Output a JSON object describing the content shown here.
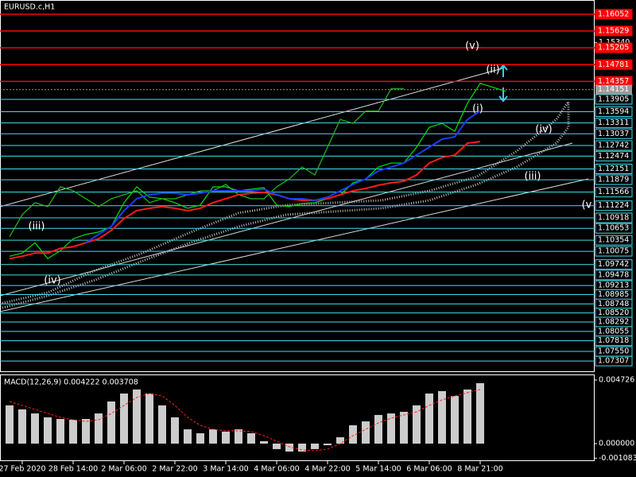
{
  "chart_data": {
    "type": "price",
    "title": "EURUSD.c,H1",
    "categories": [
      null,
      "27 Feb 2020",
      null,
      null,
      null,
      "28 Feb 14:00",
      null,
      null,
      null,
      "2 Mar 06:00",
      null,
      null,
      null,
      "2 Mar 22:00",
      null,
      null,
      null,
      "3 Mar 14:00",
      null,
      null,
      null,
      "4 Mar 06:00",
      null,
      null,
      null,
      "4 Mar 22:00",
      null,
      null,
      null,
      "5 Mar 14:00",
      null,
      null,
      null,
      "6 Mar 06:00",
      null,
      null,
      null,
      "8 Mar 21:00",
      null,
      null
    ],
    "ylim": [
      1.0703,
      1.1641
    ],
    "yticks": [
      {
        "value": 1.1534,
        "label": "1.15340"
      }
    ],
    "bid": 1.14151,
    "bid_color": "#9a9a9a",
    "series": [
      {
        "name": "close",
        "color": "#00e000",
        "values": [
          1.0995,
          1.1003,
          1.1029,
          1.0989,
          1.1009,
          1.1039,
          1.105,
          1.1056,
          1.107,
          1.113,
          1.117,
          1.1144,
          1.114,
          1.113,
          1.1116,
          1.1124,
          1.117,
          1.117,
          1.116,
          1.1164,
          1.1168,
          1.1124,
          1.112,
          1.1128,
          1.113,
          1.114,
          1.115,
          1.118,
          1.119,
          1.122,
          1.123,
          1.123,
          1.127,
          1.132,
          1.133,
          1.131,
          1.1381,
          1.1431,
          1.1421,
          1.1411
        ]
      },
      {
        "name": "lagging",
        "color": "#22bb22",
        "values": [
          1.1044,
          1.11,
          1.113,
          1.112,
          1.117,
          1.116,
          1.114,
          1.112,
          1.114,
          1.115,
          1.116,
          1.113,
          1.114,
          1.114,
          1.115,
          1.116,
          1.116,
          1.1176,
          1.115,
          1.114,
          1.114,
          1.117,
          1.119,
          1.122,
          1.12,
          1.127,
          1.134,
          1.133,
          1.1361,
          1.1361,
          1.1417,
          1.1417,
          null,
          null,
          null,
          null,
          null,
          null,
          null,
          null
        ]
      },
      {
        "name": "ma-red",
        "color": "#ff1a1a",
        "values": [
          1.0989,
          1.0995,
          1.1003,
          1.1003,
          1.1015,
          1.1019,
          1.1029,
          1.1039,
          1.106,
          1.109,
          1.111,
          1.1116,
          1.112,
          1.1116,
          1.111,
          1.1116,
          1.113,
          1.114,
          1.115,
          1.1154,
          1.1156,
          1.115,
          1.114,
          1.1136,
          1.1136,
          1.114,
          1.115,
          1.116,
          1.1166,
          1.1174,
          1.118,
          1.1184,
          1.12,
          1.123,
          1.1244,
          1.125,
          1.128,
          1.1284,
          null,
          null
        ]
      },
      {
        "name": "ma-blue",
        "color": "#1a3cff",
        "values": [
          null,
          null,
          null,
          null,
          null,
          null,
          1.1029,
          1.105,
          1.107,
          1.111,
          1.114,
          1.115,
          1.1154,
          1.1154,
          1.115,
          1.1154,
          1.116,
          1.116,
          1.116,
          1.116,
          1.1164,
          1.115,
          1.114,
          1.114,
          1.1136,
          1.1144,
          1.116,
          1.1176,
          1.119,
          1.121,
          1.122,
          1.123,
          1.125,
          1.127,
          1.129,
          1.1296,
          1.134,
          1.1361,
          null,
          null
        ]
      }
    ],
    "levels": [
      {
        "value": 1.16052,
        "color": "#ff0000"
      },
      {
        "value": 1.15629,
        "color": "#ff0000"
      },
      {
        "value": 1.15205,
        "color": "#ff0000"
      },
      {
        "value": 1.14781,
        "color": "#ff0000"
      },
      {
        "value": 1.14357,
        "color": "#ff0000"
      },
      {
        "value": 1.13905,
        "color": "#40e0f0"
      },
      {
        "value": 1.13594,
        "color": "#40e0f0"
      },
      {
        "value": 1.13311,
        "color": "#40e0f0"
      },
      {
        "value": 1.13037,
        "color": "#40e0f0"
      },
      {
        "value": 1.12742,
        "color": "#40e0f0"
      },
      {
        "value": 1.12474,
        "color": "#40e0f0"
      },
      {
        "value": 1.12151,
        "color": "#40e0f0"
      },
      {
        "value": 1.11879,
        "color": "#40e0f0"
      },
      {
        "value": 1.11566,
        "color": "#40e0f0"
      },
      {
        "value": 1.11224,
        "color": "#40e0f0"
      },
      {
        "value": 1.10918,
        "color": "#40e0f0"
      },
      {
        "value": 1.10653,
        "color": "#40e0f0"
      },
      {
        "value": 1.10354,
        "color": "#40e0f0"
      },
      {
        "value": 1.10075,
        "color": "#40e0f0"
      },
      {
        "value": 1.09742,
        "color": "#40e0f0"
      },
      {
        "value": 1.09478,
        "color": "#40e0f0"
      },
      {
        "value": 1.09213,
        "color": "#40e0f0"
      },
      {
        "value": 1.08985,
        "color": "#40e0f0"
      },
      {
        "value": 1.08748,
        "color": "#40e0f0"
      },
      {
        "value": 1.0852,
        "label": "1.08520",
        "color": "#40e0f0"
      },
      {
        "value": 1.08292,
        "color": "#40e0f0"
      },
      {
        "value": 1.08055,
        "color": "#40e0f0"
      },
      {
        "value": 1.07818,
        "color": "#40e0f0"
      },
      {
        "value": 1.0755,
        "label": "1.07550",
        "color": "#40e0f0"
      },
      {
        "value": 1.07307,
        "color": "#40e0f0"
      }
    ],
    "annotations": [
      "(v)",
      "(ii)",
      "(i)",
      "(iv)",
      "(iii)",
      "(v",
      "(iii)",
      "(iv)"
    ],
    "macd": {
      "title": "MACD(12,26,9) 0.004222 0.003708",
      "ylim": [
        -0.0013,
        0.00508
      ],
      "yticks": [
        0.004726,
        {
          "value": 0,
          "label": "0.000000"
        },
        -0.001083
      ],
      "histogram_color": "#ffffff",
      "signal_color": "#ff2020",
      "histogram": [
        0.00284,
        0.00254,
        0.00224,
        0.00195,
        0.00183,
        0.00177,
        0.00183,
        0.00224,
        0.00313,
        0.00372,
        0.00402,
        0.00372,
        0.00284,
        0.00195,
        0.00106,
        0.00077,
        0.00106,
        0.00089,
        0.00106,
        0.00077,
        0.00018,
        -0.00041,
        -0.00059,
        -0.00059,
        -0.00041,
        -0.00012,
        0.00047,
        0.00136,
        0.00165,
        0.00213,
        0.00224,
        0.00236,
        0.00284,
        0.00372,
        0.0039,
        0.00354,
        0.00402,
        0.00449,
        null,
        null
      ],
      "signal": [
        0.00313,
        0.00284,
        0.00254,
        0.00224,
        0.00195,
        0.00177,
        0.00165,
        0.00177,
        0.00224,
        0.00284,
        0.00343,
        0.00372,
        0.00354,
        0.00284,
        0.00195,
        0.00136,
        0.00106,
        0.00095,
        0.00095,
        0.00089,
        0.00059,
        0.00018,
        -0.00024,
        -0.00047,
        -0.00053,
        -0.00041,
        0,
        0.00059,
        0.00106,
        0.00154,
        0.00189,
        0.00213,
        0.00236,
        0.00284,
        0.00325,
        0.00354,
        0.00378,
        0.00402,
        null,
        null
      ]
    }
  }
}
